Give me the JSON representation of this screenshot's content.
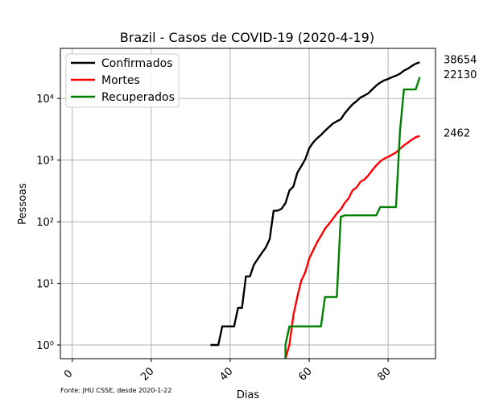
{
  "chart_data": {
    "type": "line",
    "title": "Brazil - Casos de COVID-19 (2020-4-19)",
    "xlabel": "Dias",
    "ylabel": "Pessoas",
    "y_scale": "log",
    "xlim": [
      -3,
      92
    ],
    "ylim": [
      0.6,
      65000
    ],
    "grid": true,
    "legend_position": "upper-left",
    "x_ticks": [
      0,
      20,
      40,
      60,
      80
    ],
    "x_tick_labels": [
      "0",
      "20",
      "40",
      "60",
      "80"
    ],
    "y_ticks": [
      1,
      10,
      100,
      1000,
      10000
    ],
    "y_tick_labels": [
      "10⁰",
      "10¹",
      "10²",
      "10³",
      "10⁴"
    ],
    "source_note": "Fonte: JHU CSSE, desde 2020-1-22",
    "series": [
      {
        "name": "Confirmados",
        "color": "#000000",
        "end_label": "38654",
        "points": [
          [
            35,
            1
          ],
          [
            36,
            1
          ],
          [
            37,
            1
          ],
          [
            38,
            2
          ],
          [
            39,
            2
          ],
          [
            40,
            2
          ],
          [
            41,
            2
          ],
          [
            42,
            4
          ],
          [
            43,
            4
          ],
          [
            44,
            13
          ],
          [
            45,
            13
          ],
          [
            46,
            20
          ],
          [
            47,
            25
          ],
          [
            48,
            31
          ],
          [
            49,
            38
          ],
          [
            50,
            52
          ],
          [
            51,
            151
          ],
          [
            52,
            151
          ],
          [
            53,
            162
          ],
          [
            54,
            200
          ],
          [
            55,
            321
          ],
          [
            56,
            372
          ],
          [
            57,
            621
          ],
          [
            58,
            793
          ],
          [
            59,
            1021
          ],
          [
            60,
            1546
          ],
          [
            61,
            1924
          ],
          [
            62,
            2247
          ],
          [
            63,
            2554
          ],
          [
            64,
            2985
          ],
          [
            65,
            3417
          ],
          [
            66,
            3904
          ],
          [
            67,
            4256
          ],
          [
            68,
            4579
          ],
          [
            69,
            5717
          ],
          [
            70,
            6836
          ],
          [
            71,
            8044
          ],
          [
            72,
            9056
          ],
          [
            73,
            10360
          ],
          [
            74,
            11130
          ],
          [
            75,
            12161
          ],
          [
            76,
            14034
          ],
          [
            77,
            16170
          ],
          [
            78,
            18092
          ],
          [
            79,
            19638
          ],
          [
            80,
            20727
          ],
          [
            81,
            22192
          ],
          [
            82,
            23430
          ],
          [
            83,
            25262
          ],
          [
            84,
            28320
          ],
          [
            85,
            30425
          ],
          [
            86,
            33682
          ],
          [
            87,
            36658
          ],
          [
            88,
            38654
          ]
        ]
      },
      {
        "name": "Mortes",
        "color": "#ff0000",
        "end_label": "2462",
        "points": [
          [
            54,
            0.6
          ],
          [
            55,
            1
          ],
          [
            56,
            3
          ],
          [
            57,
            6
          ],
          [
            58,
            11
          ],
          [
            59,
            15
          ],
          [
            60,
            25
          ],
          [
            61,
            34
          ],
          [
            62,
            46
          ],
          [
            63,
            59
          ],
          [
            64,
            77
          ],
          [
            65,
            92
          ],
          [
            66,
            111
          ],
          [
            67,
            136
          ],
          [
            68,
            159
          ],
          [
            69,
            201
          ],
          [
            70,
            240
          ],
          [
            71,
            324
          ],
          [
            72,
            359
          ],
          [
            73,
            445
          ],
          [
            74,
            486
          ],
          [
            75,
            564
          ],
          [
            76,
            686
          ],
          [
            77,
            819
          ],
          [
            78,
            950
          ],
          [
            79,
            1057
          ],
          [
            80,
            1124
          ],
          [
            81,
            1223
          ],
          [
            82,
            1328
          ],
          [
            83,
            1532
          ],
          [
            84,
            1736
          ],
          [
            85,
            1924
          ],
          [
            86,
            2141
          ],
          [
            87,
            2354
          ],
          [
            88,
            2462
          ]
        ]
      },
      {
        "name": "Recuperados",
        "color": "#008000",
        "end_label": "22130",
        "points": [
          [
            54,
            0.6
          ],
          [
            54,
            1
          ],
          [
            55,
            2
          ],
          [
            56,
            2
          ],
          [
            57,
            2
          ],
          [
            58,
            2
          ],
          [
            59,
            2
          ],
          [
            60,
            2
          ],
          [
            61,
            2
          ],
          [
            62,
            2
          ],
          [
            63,
            2
          ],
          [
            64,
            6
          ],
          [
            65,
            6
          ],
          [
            66,
            6
          ],
          [
            67,
            6
          ],
          [
            68,
            120
          ],
          [
            69,
            127
          ],
          [
            70,
            127
          ],
          [
            71,
            127
          ],
          [
            72,
            127
          ],
          [
            73,
            127
          ],
          [
            74,
            127
          ],
          [
            75,
            127
          ],
          [
            76,
            127
          ],
          [
            77,
            127
          ],
          [
            78,
            173
          ],
          [
            79,
            173
          ],
          [
            80,
            173
          ],
          [
            81,
            173
          ],
          [
            82,
            173
          ],
          [
            83,
            3000
          ],
          [
            84,
            14026
          ],
          [
            85,
            14026
          ],
          [
            86,
            14026
          ],
          [
            87,
            14026
          ],
          [
            88,
            22130
          ]
        ]
      }
    ]
  }
}
